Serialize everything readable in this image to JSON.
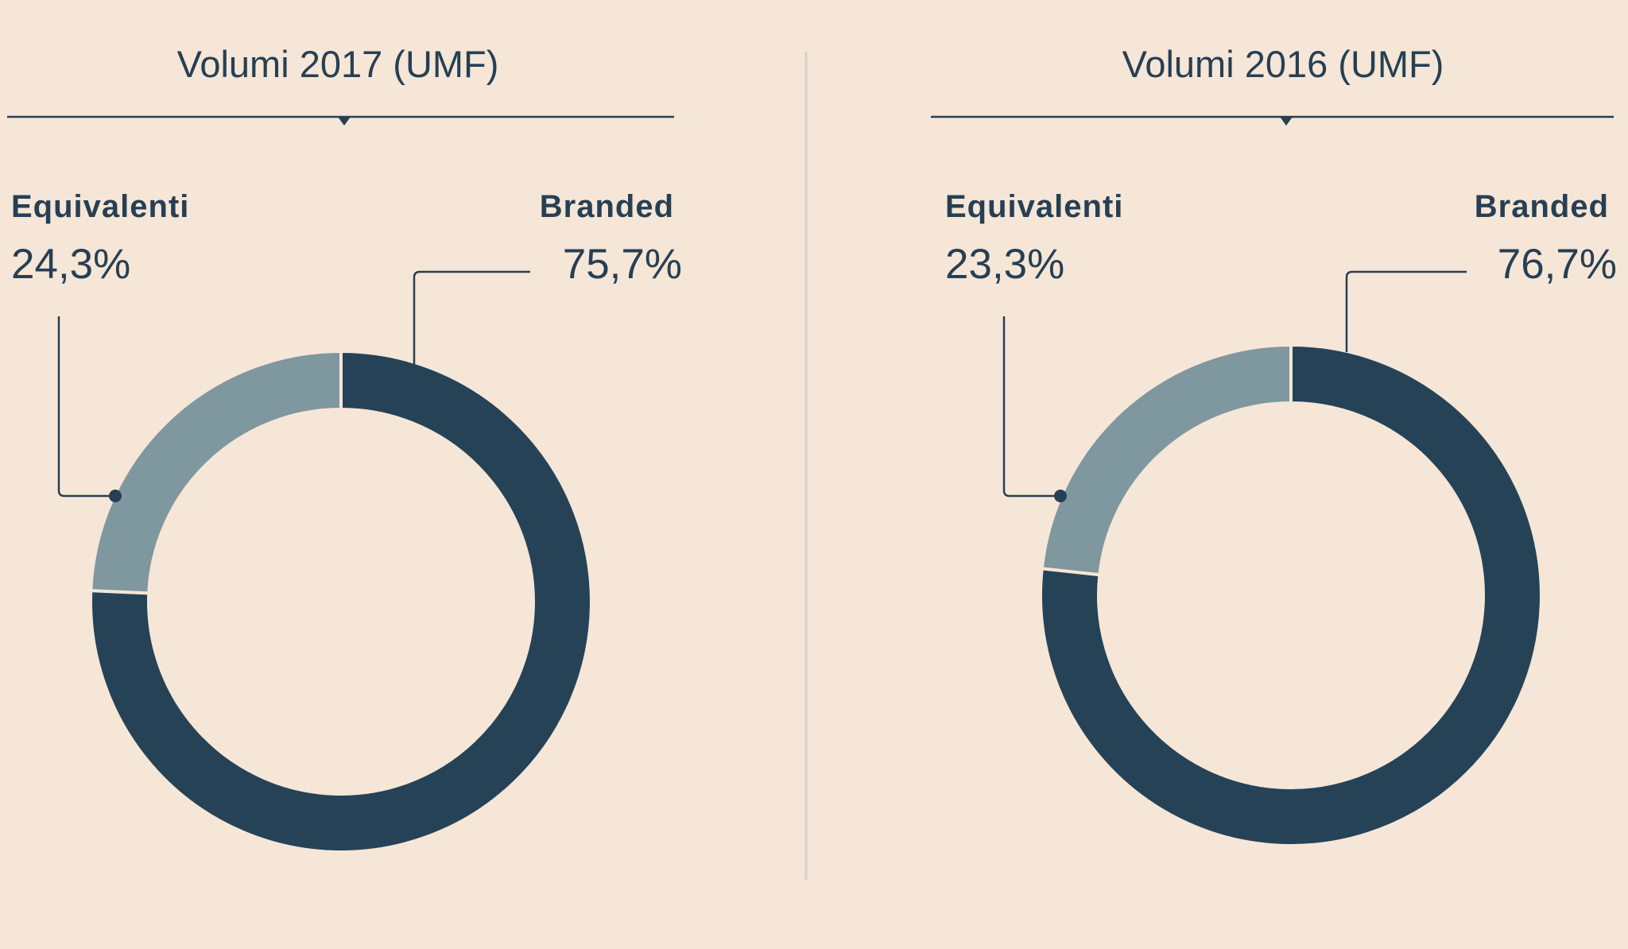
{
  "colors": {
    "background": "#f5e6d7",
    "branded": "#264257",
    "equivalenti": "#7f979e",
    "text": "#263f54",
    "divider": "#d3cfca"
  },
  "chart_data": [
    {
      "type": "pie",
      "variant": "donut",
      "title": "Volumi 2017 (UMF)",
      "slices": [
        {
          "label": "Equivalenti",
          "value": 24.3,
          "display": "24,3%"
        },
        {
          "label": "Branded",
          "value": 75.7,
          "display": "75,7%"
        }
      ]
    },
    {
      "type": "pie",
      "variant": "donut",
      "title": "Volumi 2016 (UMF)",
      "slices": [
        {
          "label": "Equivalenti",
          "value": 23.3,
          "display": "23,3%"
        },
        {
          "label": "Branded",
          "value": 76.7,
          "display": "76,7%"
        }
      ]
    }
  ]
}
